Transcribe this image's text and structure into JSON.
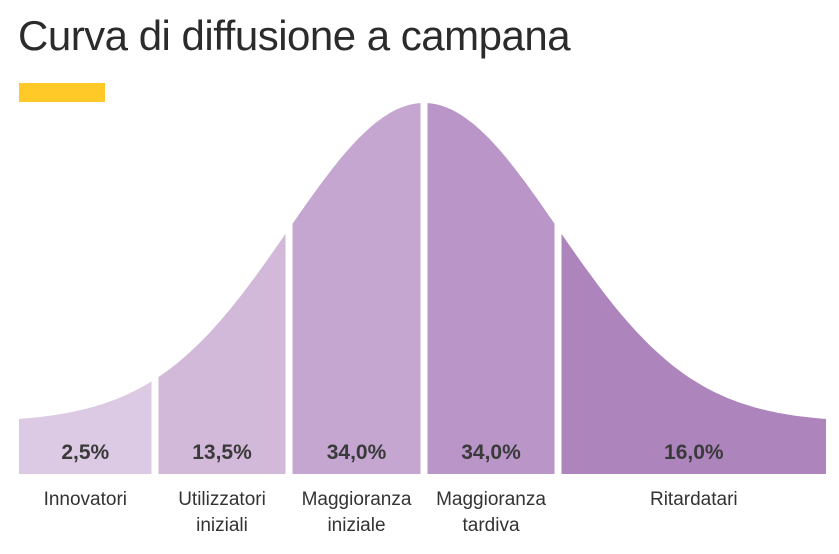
{
  "title": "Curva di diffusione a campana",
  "colors": {
    "accent": "#ffc928",
    "segments": [
      "#dcc9e3",
      "#d2b9da",
      "#c4a6d0",
      "#b995c8",
      "#ad84bc"
    ]
  },
  "chart_data": {
    "type": "area",
    "title": "Curva di diffusione a campana",
    "xlabel": "",
    "ylabel": "",
    "grid": false,
    "legend": "none",
    "categories": [
      [
        "Innovatori"
      ],
      [
        "Utilizzatori",
        "iniziali"
      ],
      [
        "Maggioranza",
        "iniziale"
      ],
      [
        "Maggioranza",
        "tardiva"
      ],
      [
        "Ritardatari"
      ]
    ],
    "values": [
      2.5,
      13.5,
      34.0,
      34.0,
      16.0
    ],
    "value_labels": [
      "2,5%",
      "13,5%",
      "34,0%",
      "34,0%",
      "16,0%"
    ]
  }
}
